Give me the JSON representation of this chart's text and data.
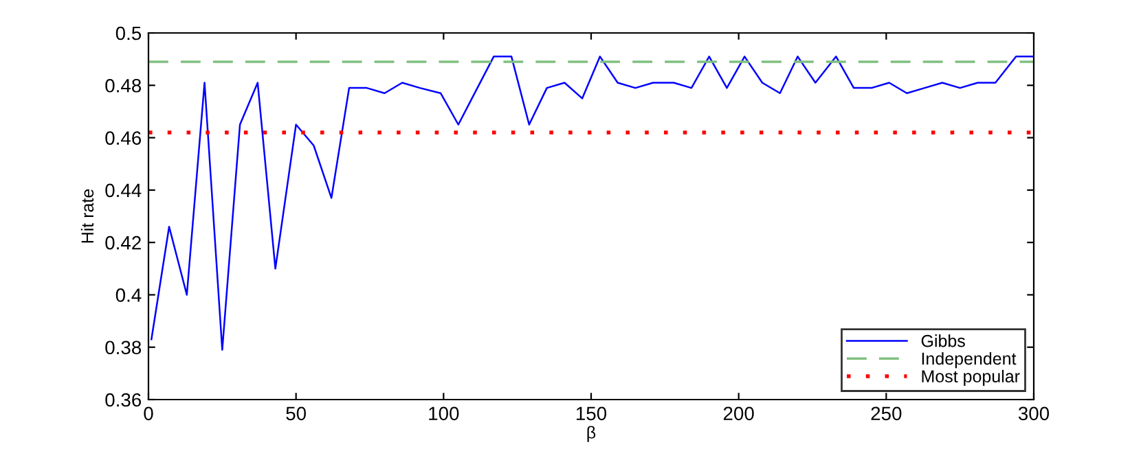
{
  "chart_data": {
    "type": "line",
    "xlabel": "β",
    "ylabel": "Hit rate",
    "x": [
      1,
      7,
      13,
      19,
      25,
      31,
      37,
      43,
      50,
      56,
      62,
      68,
      74,
      80,
      86,
      92,
      99,
      105,
      111,
      117,
      123,
      129,
      135,
      141,
      147,
      153,
      159,
      165,
      171,
      178,
      184,
      190,
      196,
      202,
      208,
      214,
      220,
      226,
      233,
      239,
      245,
      251,
      257,
      263,
      269,
      275,
      281,
      287,
      294,
      300
    ],
    "series": [
      {
        "name": "Gibbs",
        "color": "#0000ff",
        "values": [
          0.383,
          0.426,
          0.4,
          0.481,
          0.379,
          0.465,
          0.481,
          0.41,
          0.465,
          0.457,
          0.437,
          0.479,
          0.479,
          0.477,
          0.481,
          0.479,
          0.477,
          0.465,
          0.478,
          0.491,
          0.491,
          0.465,
          0.479,
          0.481,
          0.475,
          0.491,
          0.481,
          0.479,
          0.481,
          0.481,
          0.479,
          0.491,
          0.479,
          0.491,
          0.481,
          0.477,
          0.491,
          0.481,
          0.491,
          0.479,
          0.479,
          0.481,
          0.477,
          0.479,
          0.481,
          0.479,
          0.481,
          0.481,
          0.491,
          0.491
        ]
      }
    ],
    "ref_lines": [
      {
        "axis": "y",
        "value": 0.489,
        "label": "Independent",
        "color": "#80c080",
        "line_style": "dashed"
      },
      {
        "axis": "y",
        "value": 0.462,
        "label": "Most popular",
        "color": "#ff0000",
        "line_style": "dotted"
      }
    ],
    "xlim": [
      0,
      300
    ],
    "xticks": [
      0,
      50,
      100,
      150,
      200,
      250,
      300
    ],
    "ylim": [
      0.36,
      0.5
    ],
    "yticks": [
      0.36,
      0.38,
      {
        "value": 0.4,
        "label": "0.4"
      },
      0.42,
      0.44,
      0.46,
      0.48,
      {
        "value": 0.5,
        "label": "0.5"
      }
    ],
    "grid": false,
    "legend": "bottom right",
    "marker": "none",
    "line_style": "solid"
  }
}
